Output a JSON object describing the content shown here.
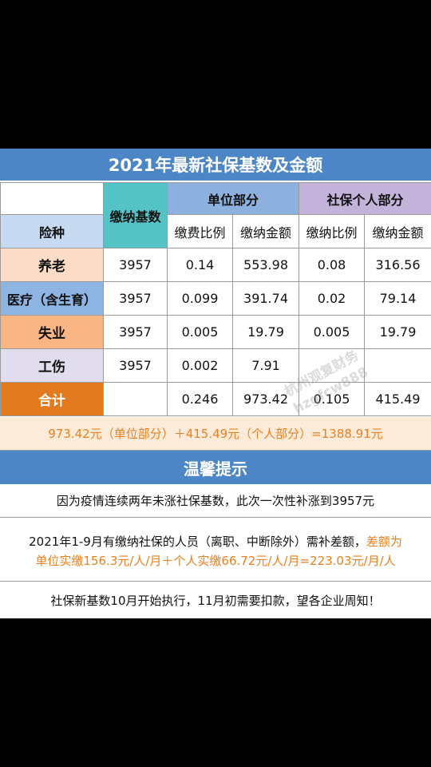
{
  "title": "2021年最新社保基数及金额",
  "headers": {
    "type": "险种",
    "base": "缴纳基数",
    "unit_part": "单位部分",
    "personal_part": "社保个人部分",
    "unit_rate": "缴费比例",
    "unit_amount": "缴纳金额",
    "personal_rate": "缴纳比例",
    "personal_amount": "缴纳金额"
  },
  "rows": [
    {
      "type": "养老",
      "base": "3957",
      "unit_rate": "0.14",
      "unit_amount": "553.98",
      "personal_rate": "0.08",
      "personal_amount": "316.56"
    },
    {
      "type": "医疗（含生育）",
      "base": "3957",
      "unit_rate": "0.099",
      "unit_amount": "391.74",
      "personal_rate": "0.02",
      "personal_amount": "79.14"
    },
    {
      "type": "失业",
      "base": "3957",
      "unit_rate": "0.005",
      "unit_amount": "19.79",
      "personal_rate": "0.005",
      "personal_amount": "19.79"
    },
    {
      "type": "工伤",
      "base": "3957",
      "unit_rate": "0.002",
      "unit_amount": "7.91",
      "personal_rate": "",
      "personal_amount": ""
    }
  ],
  "total": {
    "type": "合计",
    "base": "",
    "unit_rate": "0.246",
    "unit_amount": "973.42",
    "personal_rate": "0.105",
    "personal_amount": "415.49"
  },
  "summary": "973.42元（单位部分）＋415.49元（个人部分）=1388.91元",
  "tips": {
    "title": "温馨提示",
    "line1": "因为疫情连续两年未涨社保基数，此次一次性补涨到3957元",
    "line2_black": "2021年1-9月有缴纳社保的人员（离职、中断除外）需补差额，",
    "line2_orange_a": "差额为",
    "line2_orange_b": "单位实缴156.3元/人/月＋个人实缴66.72元/人/月=223.03元/月/人",
    "line3": "社保新基数10月开始执行，11月初需要扣款，望各企业周知！"
  },
  "watermark": {
    "line1": "杭州观复财务",
    "line2": "hzgfcw888"
  },
  "colors": {
    "blue": "#4d86c6",
    "orange": "#e9801f",
    "teal": "#54c3c6",
    "purple": "#c3b3da"
  }
}
